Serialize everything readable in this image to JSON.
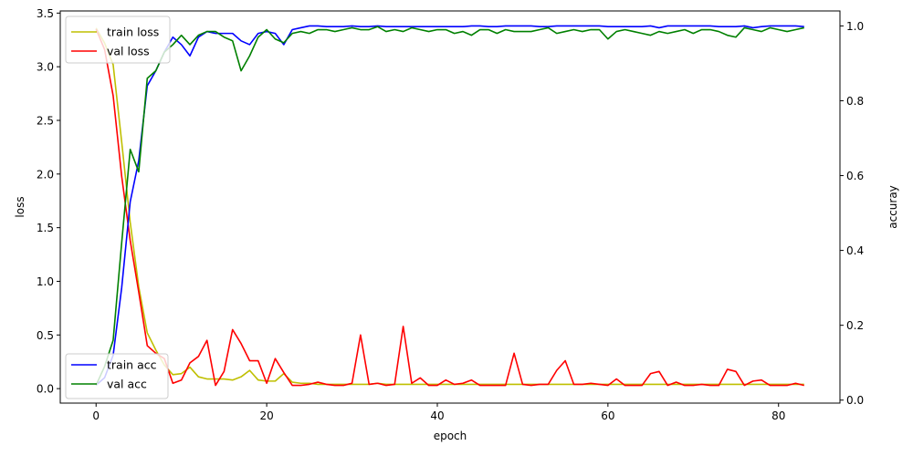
{
  "chart_data": {
    "type": "line",
    "title": "",
    "xlabel": "epoch",
    "ylabel_left": "loss",
    "ylabel_right": "accuray",
    "xlim": [
      -4.2,
      87.2
    ],
    "ylim_left": [
      -0.135,
      3.52
    ],
    "ylim_right": [
      -0.008,
      1.04
    ],
    "x_ticks": [
      0,
      20,
      40,
      60,
      80
    ],
    "y_ticks_left": [
      0.0,
      0.5,
      1.0,
      1.5,
      2.0,
      2.5,
      3.0,
      3.5
    ],
    "y_ticks_right": [
      0.0,
      0.2,
      0.4,
      0.6,
      0.8,
      1.0
    ],
    "grid": false,
    "legend_left_placement": "upper left",
    "legend_right_placement": "lower left",
    "x": [
      0,
      1,
      2,
      3,
      4,
      5,
      6,
      7,
      8,
      9,
      10,
      11,
      12,
      13,
      14,
      15,
      16,
      17,
      18,
      19,
      20,
      21,
      22,
      23,
      24,
      25,
      26,
      27,
      28,
      29,
      30,
      31,
      32,
      33,
      34,
      35,
      36,
      37,
      38,
      39,
      40,
      41,
      42,
      43,
      44,
      45,
      46,
      47,
      48,
      49,
      50,
      51,
      52,
      53,
      54,
      55,
      56,
      57,
      58,
      59,
      60,
      61,
      62,
      63,
      64,
      65,
      66,
      67,
      68,
      69,
      70,
      71,
      72,
      73,
      74,
      75,
      76,
      77,
      78,
      79,
      80,
      81,
      82,
      83
    ],
    "series": [
      {
        "name": "train loss",
        "axis": "left",
        "color": "#bfbf00",
        "values": [
          3.36,
          3.22,
          3.02,
          2.3,
          1.55,
          0.95,
          0.52,
          0.36,
          0.22,
          0.13,
          0.14,
          0.2,
          0.11,
          0.09,
          0.09,
          0.09,
          0.08,
          0.11,
          0.17,
          0.08,
          0.07,
          0.07,
          0.14,
          0.06,
          0.05,
          0.05,
          0.04,
          0.04,
          0.04,
          0.04,
          0.04,
          0.04,
          0.04,
          0.05,
          0.04,
          0.04,
          0.04,
          0.04,
          0.04,
          0.04,
          0.04,
          0.04,
          0.04,
          0.04,
          0.04,
          0.04,
          0.04,
          0.04,
          0.04,
          0.04,
          0.04,
          0.04,
          0.04,
          0.04,
          0.04,
          0.04,
          0.04,
          0.04,
          0.04,
          0.04,
          0.04,
          0.04,
          0.04,
          0.04,
          0.04,
          0.04,
          0.04,
          0.04,
          0.04,
          0.04,
          0.04,
          0.04,
          0.04,
          0.04,
          0.04,
          0.04,
          0.04,
          0.04,
          0.04,
          0.04,
          0.04,
          0.04,
          0.04,
          0.04
        ]
      },
      {
        "name": "val loss",
        "axis": "left",
        "color": "#ff0000",
        "values": [
          3.35,
          3.16,
          2.73,
          1.98,
          1.38,
          0.9,
          0.4,
          0.33,
          0.28,
          0.05,
          0.08,
          0.24,
          0.3,
          0.45,
          0.03,
          0.16,
          0.55,
          0.42,
          0.26,
          0.26,
          0.05,
          0.28,
          0.15,
          0.03,
          0.03,
          0.04,
          0.06,
          0.04,
          0.03,
          0.03,
          0.05,
          0.5,
          0.04,
          0.05,
          0.03,
          0.04,
          0.58,
          0.05,
          0.1,
          0.03,
          0.03,
          0.08,
          0.04,
          0.05,
          0.08,
          0.03,
          0.03,
          0.03,
          0.03,
          0.33,
          0.04,
          0.03,
          0.04,
          0.04,
          0.17,
          0.26,
          0.04,
          0.04,
          0.05,
          0.04,
          0.03,
          0.09,
          0.03,
          0.03,
          0.03,
          0.14,
          0.16,
          0.03,
          0.06,
          0.03,
          0.03,
          0.04,
          0.03,
          0.03,
          0.18,
          0.16,
          0.03,
          0.07,
          0.08,
          0.03,
          0.03,
          0.03,
          0.05,
          0.03
        ]
      },
      {
        "name": "train acc",
        "axis": "right",
        "color": "#0000ff",
        "values": [
          0.04,
          0.06,
          0.12,
          0.3,
          0.53,
          0.64,
          0.84,
          0.88,
          0.93,
          0.97,
          0.95,
          0.92,
          0.97,
          0.985,
          0.98,
          0.98,
          0.98,
          0.96,
          0.95,
          0.98,
          0.985,
          0.98,
          0.95,
          0.99,
          0.995,
          1.0,
          1.0,
          0.998,
          0.998,
          0.998,
          1.0,
          0.998,
          0.998,
          1.0,
          0.998,
          0.998,
          0.998,
          0.998,
          0.998,
          0.998,
          0.998,
          0.998,
          0.998,
          0.998,
          1.0,
          1.0,
          0.998,
          0.998,
          1.0,
          1.0,
          1.0,
          1.0,
          0.998,
          0.998,
          1.0,
          1.0,
          1.0,
          1.0,
          1.0,
          1.0,
          0.998,
          0.998,
          0.998,
          0.998,
          0.998,
          1.0,
          0.995,
          1.0,
          1.0,
          1.0,
          1.0,
          1.0,
          1.0,
          0.998,
          0.998,
          0.998,
          1.0,
          0.995,
          0.998,
          1.0,
          1.0,
          1.0,
          1.0,
          0.998
        ]
      },
      {
        "name": "val acc",
        "axis": "right",
        "color": "#008000",
        "values": [
          0.04,
          0.09,
          0.16,
          0.42,
          0.67,
          0.61,
          0.86,
          0.88,
          0.93,
          0.95,
          0.975,
          0.95,
          0.975,
          0.985,
          0.985,
          0.97,
          0.96,
          0.88,
          0.92,
          0.97,
          0.99,
          0.965,
          0.955,
          0.98,
          0.985,
          0.98,
          0.99,
          0.99,
          0.985,
          0.99,
          0.995,
          0.99,
          0.99,
          0.998,
          0.985,
          0.99,
          0.985,
          0.995,
          0.99,
          0.985,
          0.99,
          0.99,
          0.98,
          0.985,
          0.975,
          0.99,
          0.99,
          0.98,
          0.99,
          0.985,
          0.985,
          0.985,
          0.99,
          0.995,
          0.98,
          0.985,
          0.99,
          0.985,
          0.99,
          0.99,
          0.965,
          0.985,
          0.99,
          0.985,
          0.98,
          0.975,
          0.985,
          0.98,
          0.985,
          0.99,
          0.98,
          0.99,
          0.99,
          0.985,
          0.975,
          0.97,
          0.995,
          0.99,
          0.985,
          0.995,
          0.99,
          0.985,
          0.99,
          0.995
        ]
      }
    ]
  }
}
